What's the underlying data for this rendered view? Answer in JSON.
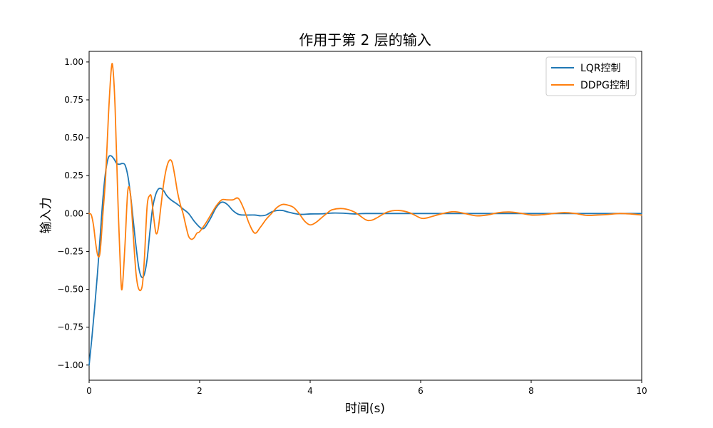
{
  "chart_data": {
    "type": "line",
    "title": "作用于第 2 层的输入",
    "xlabel": "时间(s)",
    "ylabel": "输入力",
    "xlim": [
      0,
      10
    ],
    "ylim": [
      -1.1,
      1.07
    ],
    "xticks": [
      0,
      2,
      4,
      6,
      8,
      10
    ],
    "yticks": [
      -1.0,
      -0.75,
      -0.5,
      -0.25,
      0.0,
      0.25,
      0.5,
      0.75,
      1.0
    ],
    "xtick_labels": [
      "0",
      "2",
      "4",
      "6",
      "8",
      "10"
    ],
    "ytick_labels": [
      "−1.00",
      "−0.75",
      "−0.50",
      "−0.25",
      "0.00",
      "0.25",
      "0.50",
      "0.75",
      "1.00"
    ],
    "grid": false,
    "legend_position": "top-right",
    "series": [
      {
        "name": "LQR控制",
        "color": "#1f77b4",
        "x": [
          0,
          0.05,
          0.1,
          0.15,
          0.2,
          0.25,
          0.3,
          0.35,
          0.4,
          0.45,
          0.5,
          0.55,
          0.6,
          0.65,
          0.7,
          0.75,
          0.8,
          0.85,
          0.9,
          0.95,
          1.0,
          1.05,
          1.1,
          1.15,
          1.2,
          1.25,
          1.3,
          1.35,
          1.4,
          1.45,
          1.5,
          1.6,
          1.7,
          1.8,
          1.9,
          2.0,
          2.05,
          2.1,
          2.2,
          2.3,
          2.4,
          2.5,
          2.6,
          2.7,
          2.8,
          3.0,
          3.1,
          3.2,
          3.3,
          3.4,
          3.5,
          3.6,
          3.8,
          4.0,
          4.2,
          4.4,
          4.6,
          4.8,
          5.0,
          5.5,
          6.0,
          7.0,
          8.0,
          9.0,
          10.0
        ],
        "y": [
          -1.0,
          -0.82,
          -0.62,
          -0.4,
          -0.15,
          0.1,
          0.28,
          0.37,
          0.38,
          0.36,
          0.33,
          0.325,
          0.33,
          0.32,
          0.25,
          0.12,
          -0.05,
          -0.22,
          -0.36,
          -0.42,
          -0.4,
          -0.3,
          -0.12,
          0.04,
          0.12,
          0.16,
          0.165,
          0.15,
          0.12,
          0.1,
          0.085,
          0.06,
          0.03,
          0.0,
          -0.05,
          -0.09,
          -0.1,
          -0.09,
          -0.03,
          0.04,
          0.075,
          0.06,
          0.02,
          -0.005,
          -0.01,
          -0.01,
          -0.015,
          -0.01,
          0.01,
          0.02,
          0.02,
          0.01,
          -0.005,
          -0.003,
          -0.002,
          0.003,
          0.002,
          -0.003,
          0.0,
          0.0,
          0.0,
          0.0,
          0.0,
          0.0,
          0.0
        ]
      },
      {
        "name": "DDPG控制",
        "color": "#ff7f0e",
        "x": [
          0,
          0.04,
          0.08,
          0.12,
          0.16,
          0.2,
          0.25,
          0.3,
          0.35,
          0.4,
          0.43,
          0.47,
          0.52,
          0.57,
          0.6,
          0.65,
          0.7,
          0.75,
          0.8,
          0.85,
          0.9,
          0.96,
          1.0,
          1.05,
          1.1,
          1.13,
          1.17,
          1.21,
          1.25,
          1.3,
          1.35,
          1.4,
          1.45,
          1.5,
          1.55,
          1.6,
          1.65,
          1.7,
          1.75,
          1.8,
          1.85,
          1.9,
          1.95,
          2.0,
          2.1,
          2.2,
          2.3,
          2.4,
          2.5,
          2.6,
          2.7,
          2.8,
          2.9,
          3.0,
          3.1,
          3.2,
          3.3,
          3.4,
          3.5,
          3.6,
          3.7,
          3.8,
          3.9,
          4.0,
          4.1,
          4.2,
          4.3,
          4.4,
          4.6,
          4.8,
          5.0,
          5.1,
          5.2,
          5.4,
          5.6,
          5.8,
          6.0,
          6.1,
          6.2,
          6.4,
          6.6,
          6.8,
          7.0,
          7.2,
          7.4,
          7.6,
          7.8,
          8.0,
          8.2,
          8.4,
          8.6,
          8.8,
          9.0,
          9.2,
          9.4,
          9.6,
          9.8,
          10.0
        ],
        "y": [
          0.0,
          -0.01,
          -0.08,
          -0.2,
          -0.28,
          -0.25,
          0.0,
          0.25,
          0.65,
          0.95,
          0.96,
          0.7,
          0.1,
          -0.4,
          -0.49,
          -0.2,
          0.15,
          0.12,
          -0.15,
          -0.4,
          -0.5,
          -0.48,
          -0.3,
          0.05,
          0.12,
          0.1,
          -0.03,
          -0.13,
          -0.1,
          0.05,
          0.2,
          0.3,
          0.35,
          0.34,
          0.25,
          0.14,
          0.06,
          0.0,
          -0.08,
          -0.15,
          -0.17,
          -0.16,
          -0.13,
          -0.12,
          -0.07,
          -0.01,
          0.05,
          0.09,
          0.09,
          0.09,
          0.1,
          0.03,
          -0.07,
          -0.13,
          -0.09,
          -0.04,
          0.0,
          0.04,
          0.06,
          0.055,
          0.04,
          0.0,
          -0.05,
          -0.075,
          -0.06,
          -0.03,
          0.0,
          0.025,
          0.032,
          0.01,
          -0.04,
          -0.045,
          -0.03,
          0.01,
          0.02,
          0.005,
          -0.03,
          -0.03,
          -0.02,
          0.0,
          0.012,
          0.0,
          -0.015,
          -0.01,
          0.005,
          0.01,
          0.002,
          -0.01,
          -0.008,
          0.0,
          0.006,
          0.0,
          -0.012,
          -0.01,
          -0.006,
          0.0,
          -0.003,
          -0.01
        ]
      }
    ]
  }
}
